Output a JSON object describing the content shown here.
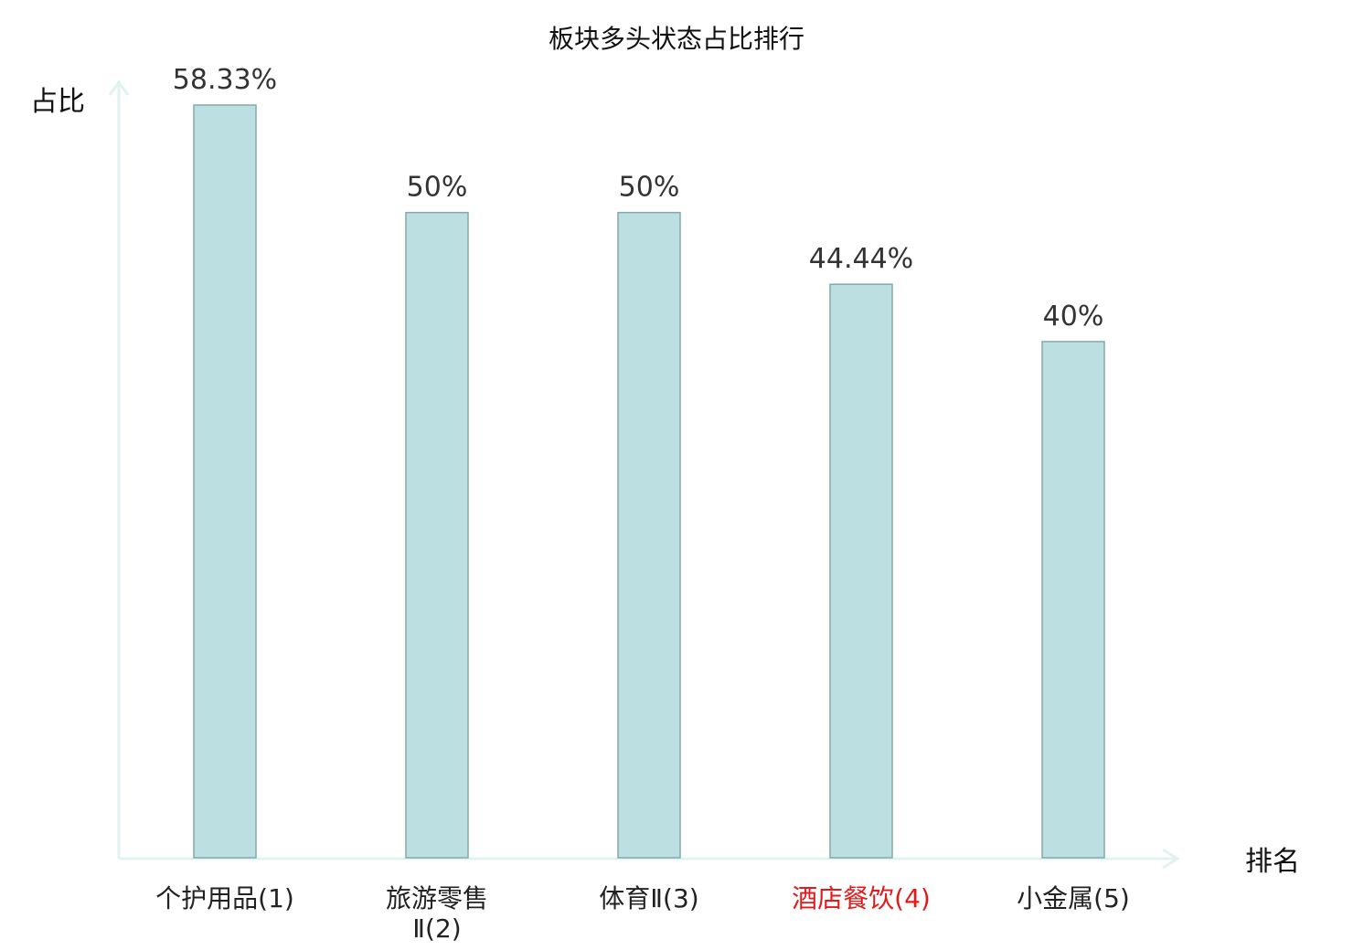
{
  "chart_data": {
    "type": "bar",
    "title": "板块多头状态占比排行",
    "ylabel": "占比",
    "xlabel": "排名",
    "categories": [
      "个护用品(1)",
      "旅游零售Ⅱ(2)",
      "体育Ⅱ(3)",
      "酒店餐饮(4)",
      "小金属(5)"
    ],
    "category_lines": [
      [
        "个护用品(1)"
      ],
      [
        "旅游零售",
        "Ⅱ(2)"
      ],
      [
        "体育Ⅱ(3)"
      ],
      [
        "酒店餐饮(4)"
      ],
      [
        "小金属(5)"
      ]
    ],
    "values": [
      58.33,
      50,
      50,
      44.44,
      40
    ],
    "value_labels": [
      "58.33%",
      "50%",
      "50%",
      "44.44%",
      "40%"
    ],
    "highlight_index": 3,
    "ylim": [
      0,
      58.33
    ],
    "grid": false,
    "colors": {
      "bar_fill": "#bce0e2",
      "bar_stroke": "#86a8aa",
      "axis": "#e0f3f1",
      "label_default": "#222222",
      "label_highlight": "#e31a1a"
    }
  }
}
